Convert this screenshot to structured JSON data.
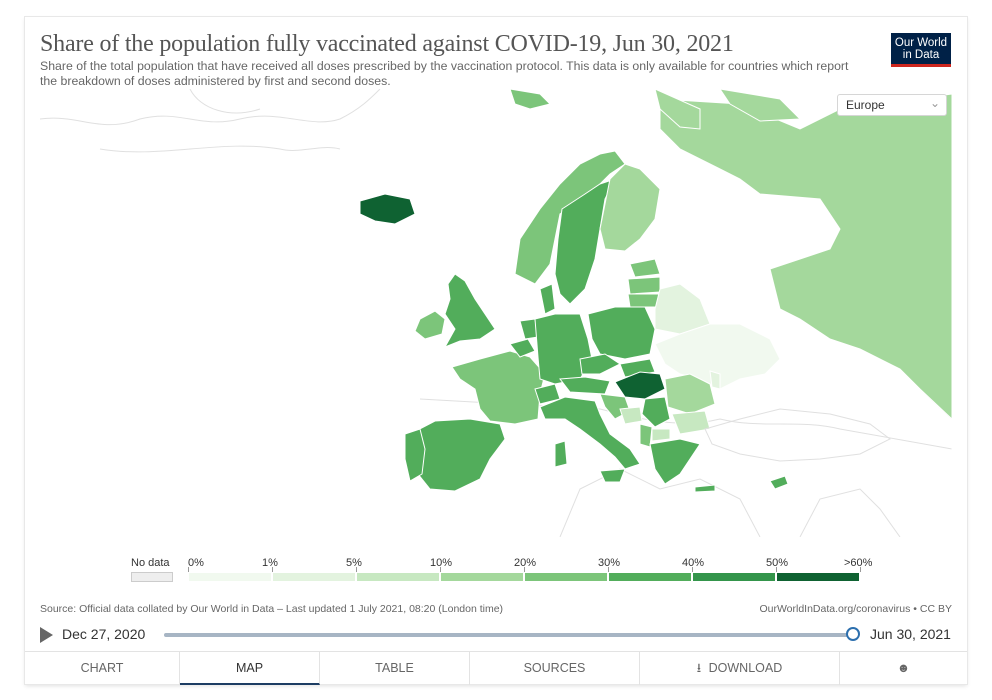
{
  "title": "Share of the population fully vaccinated against COVID-19, Jun 30, 2021",
  "subtitle": "Share of the total population that have received all doses prescribed by the vaccination protocol. This data is only available for countries which report the breakdown of doses administered by first and second doses.",
  "logo": {
    "line1": "Our World",
    "line2": "in Data"
  },
  "region_selector": {
    "selected": "Europe"
  },
  "legend": {
    "no_data_label": "No data",
    "ticks": [
      "0%",
      "1%",
      "5%",
      "10%",
      "20%",
      "30%",
      "40%",
      "50%",
      ">60%"
    ],
    "colors": [
      "#f1f9ef",
      "#e3f3df",
      "#c7e8c1",
      "#a4d89c",
      "#7cc57a",
      "#52ad5b",
      "#34954b",
      "#0f6232"
    ],
    "no_data_color": "#eeeeee"
  },
  "source_text": "Source: Official data collated by Our World in Data – Last updated 1 July 2021, 08:20 (London time)",
  "license_text": "OurWorldInData.org/coronavirus • CC BY",
  "timeline": {
    "start": "Dec 27, 2020",
    "end": "Jun 30, 2021",
    "position": 1.0
  },
  "tabs": [
    "CHART",
    "MAP",
    "TABLE",
    "SOURCES",
    "DOWNLOAD",
    ""
  ],
  "active_tab": "MAP",
  "map_colors": {
    "dark": "#0f6232",
    "c40": "#34954b",
    "c30": "#52ad5b",
    "c20": "#7cc57a",
    "c10": "#a4d89c",
    "c5": "#c7e8c1",
    "c1": "#e3f3df",
    "c0": "#f1f9ef",
    "border": "#ffffff",
    "outline": "#e0e0e0"
  }
}
